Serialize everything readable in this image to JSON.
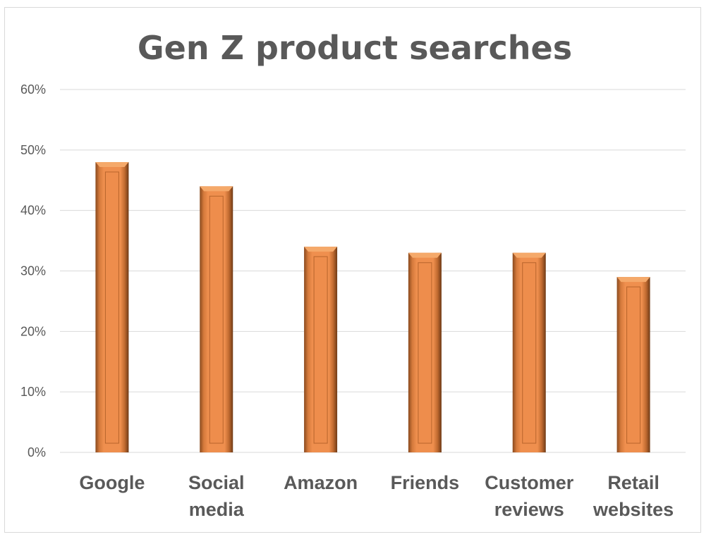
{
  "chart_data": {
    "type": "bar",
    "title": "Gen Z product searches",
    "categories": [
      [
        "Google"
      ],
      [
        "Social",
        "media"
      ],
      [
        "Amazon"
      ],
      [
        "Friends"
      ],
      [
        "Customer",
        "reviews"
      ],
      [
        "Retail",
        "websites"
      ]
    ],
    "values": [
      48,
      44,
      34,
      33,
      33,
      29
    ],
    "value_unit": "%",
    "ylim": [
      0,
      60
    ],
    "yticks": [
      "0%",
      "10%",
      "20%",
      "30%",
      "40%",
      "50%",
      "60%"
    ],
    "xlabel": "",
    "ylabel": "",
    "grid": true,
    "legend": "none",
    "bar_color": "#ED8B4A"
  }
}
